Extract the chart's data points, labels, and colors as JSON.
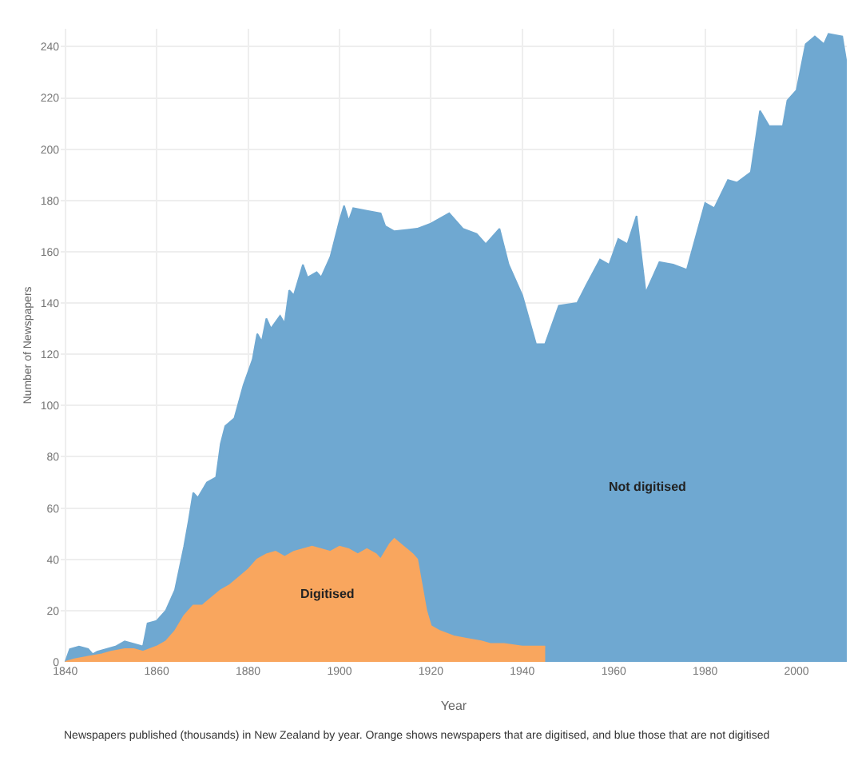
{
  "chart_data": {
    "type": "area",
    "xlabel": "Year",
    "ylabel": "Number of Newspapers",
    "annotations": [
      "Newspapers published (thousands) in New Zealand by year. Orange shows newspapers that are digitised, and blue those that are not digitised"
    ],
    "xlim": [
      1839,
      2011
    ],
    "xticks": [
      1840,
      1860,
      1880,
      1900,
      1920,
      1940,
      1960,
      1980,
      2000
    ],
    "ylim": [
      0,
      247
    ],
    "yticks": [
      0,
      20,
      40,
      60,
      80,
      100,
      120,
      140,
      160,
      180,
      200,
      220,
      240
    ],
    "grid": true,
    "legend": false,
    "series": [
      {
        "name": "Not digitised",
        "color": "#6fa8d1",
        "x": [
          1840,
          1841,
          1843,
          1845,
          1846,
          1847,
          1849,
          1851,
          1853,
          1855,
          1857,
          1858,
          1860,
          1862,
          1864,
          1866,
          1867,
          1868,
          1869,
          1871,
          1873,
          1874,
          1875,
          1877,
          1879,
          1881,
          1882,
          1883,
          1884,
          1885,
          1887,
          1888,
          1889,
          1890,
          1892,
          1893,
          1895,
          1896,
          1898,
          1899,
          1900,
          1901,
          1902,
          1903,
          1906,
          1909,
          1910,
          1912,
          1917,
          1920,
          1924,
          1927,
          1930,
          1932,
          1935,
          1937,
          1940,
          1943,
          1945,
          1948,
          1952,
          1954,
          1957,
          1959,
          1961,
          1963,
          1965,
          1967,
          1970,
          1973,
          1976,
          1980,
          1982,
          1985,
          1987,
          1990,
          1992,
          1994,
          1997,
          1998,
          2000,
          2002,
          2004,
          2006,
          2007,
          2010,
          2011
        ],
        "values": [
          0,
          5,
          6,
          5,
          3,
          4,
          5,
          6,
          8,
          7,
          6,
          15,
          16,
          20,
          28,
          45,
          55,
          66,
          64,
          70,
          72,
          85,
          92,
          95,
          108,
          118,
          128,
          125,
          134,
          130,
          135,
          132,
          145,
          143,
          155,
          150,
          152,
          150,
          158,
          165,
          172,
          178,
          172,
          177,
          176,
          175,
          170,
          168,
          169,
          171,
          175,
          169,
          167,
          163,
          169,
          155,
          143,
          124,
          124,
          139,
          140,
          147,
          157,
          155,
          165,
          163,
          174,
          144,
          156,
          155,
          153,
          179,
          177,
          188,
          187,
          191,
          215,
          209,
          209,
          219,
          223,
          241,
          244,
          241,
          245,
          244,
          233
        ]
      },
      {
        "name": "Digitised",
        "color": "#f9a65e",
        "x": [
          1840,
          1842,
          1845,
          1848,
          1850,
          1853,
          1855,
          1857,
          1860,
          1862,
          1864,
          1866,
          1868,
          1870,
          1872,
          1874,
          1876,
          1878,
          1880,
          1882,
          1884,
          1886,
          1888,
          1890,
          1892,
          1894,
          1896,
          1898,
          1900,
          1902,
          1904,
          1906,
          1908,
          1909,
          1911,
          1912,
          1914,
          1916,
          1917,
          1918,
          1919,
          1920,
          1922,
          1925,
          1928,
          1931,
          1933,
          1936,
          1940,
          1944,
          1945
        ],
        "values": [
          0,
          1,
          2,
          3,
          4,
          5,
          5,
          4,
          6,
          8,
          12,
          18,
          22,
          22,
          25,
          28,
          30,
          33,
          36,
          40,
          42,
          43,
          41,
          43,
          44,
          45,
          44,
          43,
          45,
          44,
          42,
          44,
          42,
          40,
          46,
          48,
          45,
          42,
          40,
          30,
          20,
          14,
          12,
          10,
          9,
          8,
          7,
          7,
          6,
          6,
          6
        ]
      }
    ]
  }
}
